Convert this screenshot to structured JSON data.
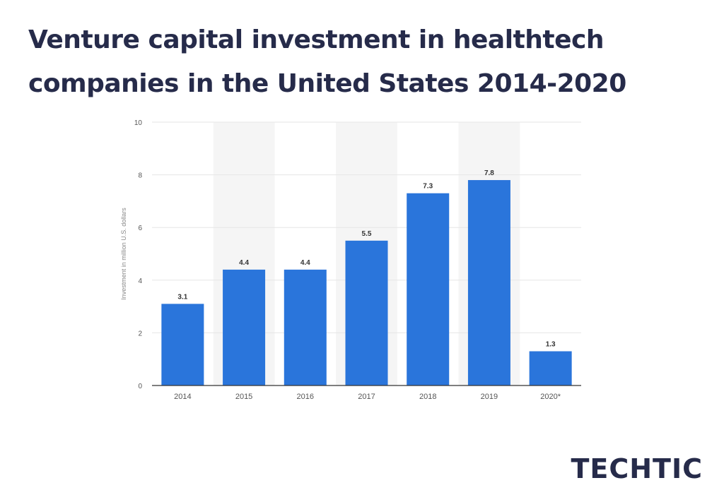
{
  "header": {
    "title_line1": "Venture capital investment in healthtech",
    "title_line2": "companies in the United States 2014-2020"
  },
  "brand": {
    "name": "TECHTIC"
  },
  "chart_data": {
    "type": "bar",
    "title": "Venture capital investment in healthtech companies in the United States 2014-2020",
    "xlabel": "",
    "ylabel": "Investment in million U.S. dollars",
    "categories": [
      "2014",
      "2015",
      "2016",
      "2017",
      "2018",
      "2019",
      "2020*"
    ],
    "values": [
      3.1,
      4.4,
      4.4,
      5.5,
      7.3,
      7.8,
      1.3
    ],
    "data_labels": [
      "3.1",
      "4.4",
      "4.4",
      "5.5",
      "7.3",
      "7.8",
      "1.3"
    ],
    "ylim": [
      0,
      10
    ],
    "yticks": [
      0,
      2,
      4,
      6,
      8,
      10
    ],
    "grid": true,
    "legend": "none",
    "colors": {
      "bar": "#2a75db",
      "axis": "#333333",
      "grid": "#e6e6e6",
      "band": "#f5f5f5",
      "label": "#333333",
      "tick": "#555555"
    }
  }
}
